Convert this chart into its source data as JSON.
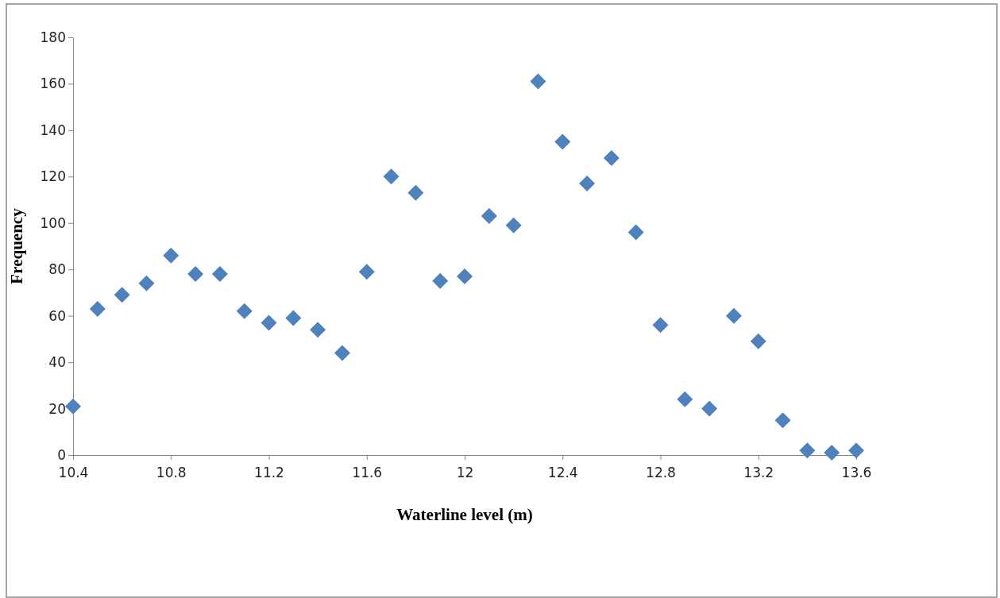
{
  "chart_data": {
    "type": "scatter",
    "xlabel": "Waterline level (m)",
    "ylabel": "Frequency",
    "x": [
      10.4,
      10.5,
      10.6,
      10.7,
      10.8,
      10.9,
      11.0,
      11.1,
      11.2,
      11.3,
      11.4,
      11.5,
      11.6,
      11.7,
      11.8,
      11.9,
      12.0,
      12.1,
      12.2,
      12.3,
      12.4,
      12.5,
      12.6,
      12.7,
      12.8,
      12.9,
      13.0,
      13.1,
      13.2,
      13.3,
      13.4,
      13.5,
      13.6
    ],
    "series": [
      {
        "color": "#4f81bd",
        "values": [
          21,
          63,
          69,
          74,
          86,
          78,
          78,
          62,
          57,
          59,
          54,
          44,
          79,
          120,
          113,
          75,
          77,
          103,
          99,
          161,
          135,
          117,
          128,
          96,
          56,
          24,
          20,
          60,
          49,
          15,
          2,
          1,
          2
        ]
      }
    ],
    "xlim": [
      10.4,
      13.6
    ],
    "xticks": [
      10.4,
      10.8,
      11.2,
      11.6,
      12,
      12.4,
      12.8,
      13.2,
      13.6
    ],
    "ylim": [
      0,
      180
    ],
    "yticks": [
      0,
      20,
      40,
      60,
      80,
      100,
      120,
      140,
      160,
      180
    ],
    "marker": "diamond"
  }
}
